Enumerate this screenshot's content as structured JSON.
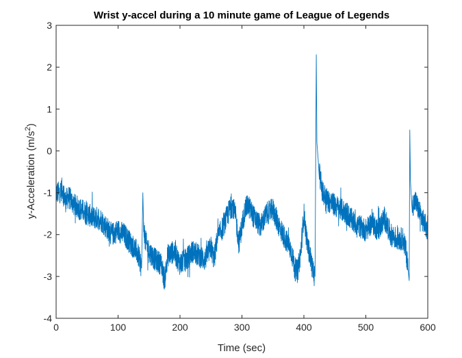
{
  "chart_data": {
    "type": "line",
    "title": "Wrist y-accel during a 10 minute game of League of Legends",
    "xlabel": "Time (sec)",
    "ylabel_main": "y-Acceleration (m/s",
    "ylabel_sup": "2",
    "ylabel_tail": ")",
    "xlim": [
      0,
      600
    ],
    "ylim": [
      -4,
      3
    ],
    "x_ticks": [
      {
        "value": 0,
        "label": "0"
      },
      {
        "value": 100,
        "label": "100"
      },
      {
        "value": 200,
        "label": "200"
      },
      {
        "value": 300,
        "label": "300"
      },
      {
        "value": 400,
        "label": "400"
      },
      {
        "value": 500,
        "label": "500"
      },
      {
        "value": 600,
        "label": "600"
      }
    ],
    "y_ticks": [
      {
        "value": -4,
        "label": "-4"
      },
      {
        "value": -3,
        "label": "-3"
      },
      {
        "value": -2,
        "label": "-2"
      },
      {
        "value": -1,
        "label": "-1"
      },
      {
        "value": 0,
        "label": "0"
      },
      {
        "value": 1,
        "label": "1"
      },
      {
        "value": 2,
        "label": "2"
      },
      {
        "value": 3,
        "label": "3"
      }
    ],
    "grid": false,
    "series": [
      {
        "color": "#0072BD",
        "x": [
          0,
          5,
          10,
          15,
          20,
          30,
          40,
          50,
          60,
          70,
          80,
          90,
          100,
          110,
          120,
          130,
          135,
          138,
          140,
          141,
          145,
          150,
          160,
          170,
          175,
          180,
          190,
          200,
          210,
          220,
          230,
          240,
          250,
          255,
          260,
          270,
          280,
          285,
          290,
          295,
          300,
          305,
          310,
          320,
          330,
          340,
          350,
          360,
          370,
          380,
          385,
          390,
          395,
          400,
          405,
          410,
          415,
          418,
          420,
          421,
          422,
          423,
          425,
          430,
          440,
          450,
          460,
          470,
          480,
          490,
          500,
          510,
          520,
          530,
          540,
          550,
          560,
          565,
          568,
          570,
          571,
          572,
          573,
          575,
          580,
          590,
          600
        ],
        "y": [
          -1.0,
          -1.0,
          -0.9,
          -1.2,
          -1.1,
          -1.3,
          -1.4,
          -1.5,
          -1.6,
          -1.6,
          -1.8,
          -2.0,
          -1.9,
          -2.0,
          -2.2,
          -2.4,
          -2.6,
          -2.8,
          -1.0,
          -1.8,
          -2.2,
          -2.4,
          -2.6,
          -2.7,
          -3.1,
          -2.5,
          -2.4,
          -2.7,
          -2.6,
          -2.4,
          -2.5,
          -2.6,
          -2.3,
          -2.6,
          -2.1,
          -1.8,
          -1.4,
          -1.3,
          -1.6,
          -2.2,
          -1.8,
          -1.4,
          -1.3,
          -1.6,
          -1.8,
          -1.5,
          -1.4,
          -1.8,
          -2.1,
          -2.4,
          -2.8,
          -2.9,
          -2.4,
          -1.5,
          -2.2,
          -2.5,
          -2.9,
          -3.0,
          2.3,
          0.2,
          0.0,
          -0.2,
          -0.5,
          -1.0,
          -1.2,
          -1.3,
          -1.4,
          -1.5,
          -1.7,
          -1.8,
          -1.9,
          -1.7,
          -1.9,
          -1.6,
          -2.0,
          -2.1,
          -2.1,
          -2.4,
          -2.8,
          -3.1,
          0.5,
          -0.7,
          -1.0,
          -1.3,
          -1.2,
          -1.6,
          -1.9
        ]
      }
    ]
  }
}
